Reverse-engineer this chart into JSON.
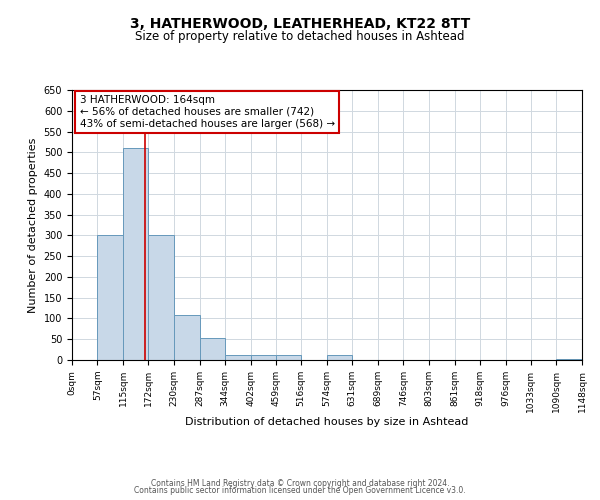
{
  "title1": "3, HATHERWOOD, LEATHERHEAD, KT22 8TT",
  "title2": "Size of property relative to detached houses in Ashtead",
  "xlabel": "Distribution of detached houses by size in Ashtead",
  "ylabel": "Number of detached properties",
  "bin_edges": [
    0,
    57,
    115,
    172,
    230,
    287,
    344,
    402,
    459,
    516,
    574,
    631,
    689,
    746,
    803,
    861,
    918,
    976,
    1033,
    1090,
    1148
  ],
  "bar_heights": [
    0,
    300,
    510,
    300,
    108,
    53,
    13,
    13,
    13,
    0,
    13,
    0,
    0,
    0,
    0,
    0,
    0,
    0,
    0,
    3
  ],
  "bar_color": "#c8d8e8",
  "bar_edge_color": "#6699bb",
  "vline_x": 164,
  "vline_color": "#cc0000",
  "ylim": [
    0,
    650
  ],
  "yticks": [
    0,
    50,
    100,
    150,
    200,
    250,
    300,
    350,
    400,
    450,
    500,
    550,
    600,
    650
  ],
  "tick_labels": [
    "0sqm",
    "57sqm",
    "115sqm",
    "172sqm",
    "230sqm",
    "287sqm",
    "344sqm",
    "402sqm",
    "459sqm",
    "516sqm",
    "574sqm",
    "631sqm",
    "689sqm",
    "746sqm",
    "803sqm",
    "861sqm",
    "918sqm",
    "976sqm",
    "1033sqm",
    "1090sqm",
    "1148sqm"
  ],
  "annotation_box_text": "3 HATHERWOOD: 164sqm\n← 56% of detached houses are smaller (742)\n43% of semi-detached houses are larger (568) →",
  "box_color": "#ffffff",
  "box_edge_color": "#cc0000",
  "footer1": "Contains HM Land Registry data © Crown copyright and database right 2024.",
  "footer2": "Contains public sector information licensed under the Open Government Licence v3.0.",
  "background_color": "#ffffff",
  "grid_color": "#d0d8e0",
  "title1_fontsize": 10,
  "title2_fontsize": 8.5,
  "xlabel_fontsize": 8,
  "ylabel_fontsize": 8,
  "tick_fontsize": 6.5,
  "ytick_fontsize": 7,
  "annot_fontsize": 7.5,
  "footer_fontsize": 5.5
}
